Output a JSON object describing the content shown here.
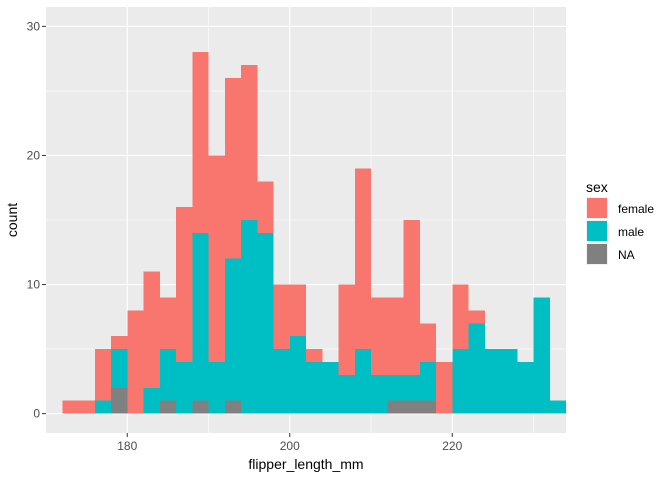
{
  "chart_data": {
    "type": "bar",
    "stacked": true,
    "xlabel": "flipper_length_mm",
    "ylabel": "count",
    "xlim": [
      170,
      234
    ],
    "ylim": [
      0,
      30
    ],
    "x_ticks": [
      180,
      200,
      220
    ],
    "y_ticks": [
      0,
      10,
      20,
      30
    ],
    "grid": true,
    "legend": {
      "title": "sex",
      "placement": "right"
    },
    "bins": [
      {
        "x0": 172,
        "x1": 174,
        "female": 1,
        "male": 0,
        "na": 0
      },
      {
        "x0": 174,
        "x1": 176,
        "female": 1,
        "male": 0,
        "na": 0
      },
      {
        "x0": 176,
        "x1": 178,
        "female": 4,
        "male": 1,
        "na": 0
      },
      {
        "x0": 178,
        "x1": 180,
        "female": 1,
        "male": 3,
        "na": 2
      },
      {
        "x0": 180,
        "x1": 182,
        "female": 8,
        "male": 0,
        "na": 0
      },
      {
        "x0": 182,
        "x1": 184,
        "female": 9,
        "male": 2,
        "na": 0
      },
      {
        "x0": 184,
        "x1": 186,
        "female": 4,
        "male": 4,
        "na": 1
      },
      {
        "x0": 186,
        "x1": 188,
        "female": 12,
        "male": 4,
        "na": 0
      },
      {
        "x0": 188,
        "x1": 190,
        "female": 14,
        "male": 13,
        "na": 1
      },
      {
        "x0": 190,
        "x1": 192,
        "female": 16,
        "male": 4,
        "na": 0
      },
      {
        "x0": 192,
        "x1": 194,
        "female": 14,
        "male": 11,
        "na": 1
      },
      {
        "x0": 194,
        "x1": 196,
        "female": 12,
        "male": 15,
        "na": 0
      },
      {
        "x0": 196,
        "x1": 198,
        "female": 4,
        "male": 14,
        "na": 0
      },
      {
        "x0": 198,
        "x1": 200,
        "female": 5,
        "male": 5,
        "na": 0
      },
      {
        "x0": 200,
        "x1": 202,
        "female": 4,
        "male": 6,
        "na": 0
      },
      {
        "x0": 202,
        "x1": 204,
        "female": 1,
        "male": 4,
        "na": 0
      },
      {
        "x0": 204,
        "x1": 206,
        "female": 0,
        "male": 4,
        "na": 0
      },
      {
        "x0": 206,
        "x1": 208,
        "female": 7,
        "male": 3,
        "na": 0
      },
      {
        "x0": 208,
        "x1": 210,
        "female": 14,
        "male": 5,
        "na": 0
      },
      {
        "x0": 210,
        "x1": 212,
        "female": 6,
        "male": 3,
        "na": 0
      },
      {
        "x0": 212,
        "x1": 214,
        "female": 6,
        "male": 2,
        "na": 1
      },
      {
        "x0": 214,
        "x1": 216,
        "female": 12,
        "male": 2,
        "na": 1
      },
      {
        "x0": 216,
        "x1": 218,
        "female": 3,
        "male": 3,
        "na": 1
      },
      {
        "x0": 218,
        "x1": 220,
        "female": 4,
        "male": 0,
        "na": 0
      },
      {
        "x0": 220,
        "x1": 222,
        "female": 5,
        "male": 5,
        "na": 0
      },
      {
        "x0": 222,
        "x1": 224,
        "female": 1,
        "male": 7,
        "na": 0
      },
      {
        "x0": 224,
        "x1": 226,
        "female": 0,
        "male": 5,
        "na": 0
      },
      {
        "x0": 226,
        "x1": 228,
        "female": 0,
        "male": 5,
        "na": 0
      },
      {
        "x0": 228,
        "x1": 230,
        "female": 0,
        "male": 4,
        "na": 0
      },
      {
        "x0": 230,
        "x1": 232,
        "female": 0,
        "male": 9,
        "na": 0
      },
      {
        "x0": 232,
        "x1": 234,
        "female": 0,
        "male": 1,
        "na": 0
      }
    ],
    "series": [
      {
        "key": "female",
        "name": "female",
        "color": "#F8766D"
      },
      {
        "key": "male",
        "name": "male",
        "color": "#00BFC4"
      },
      {
        "key": "na",
        "name": "NA",
        "color": "#808080"
      }
    ],
    "colors": {
      "panel_background": "#EBEBEB",
      "grid_major": "#FFFFFF",
      "axis_text": "#4D4D4D",
      "title_text": "#000000"
    }
  }
}
